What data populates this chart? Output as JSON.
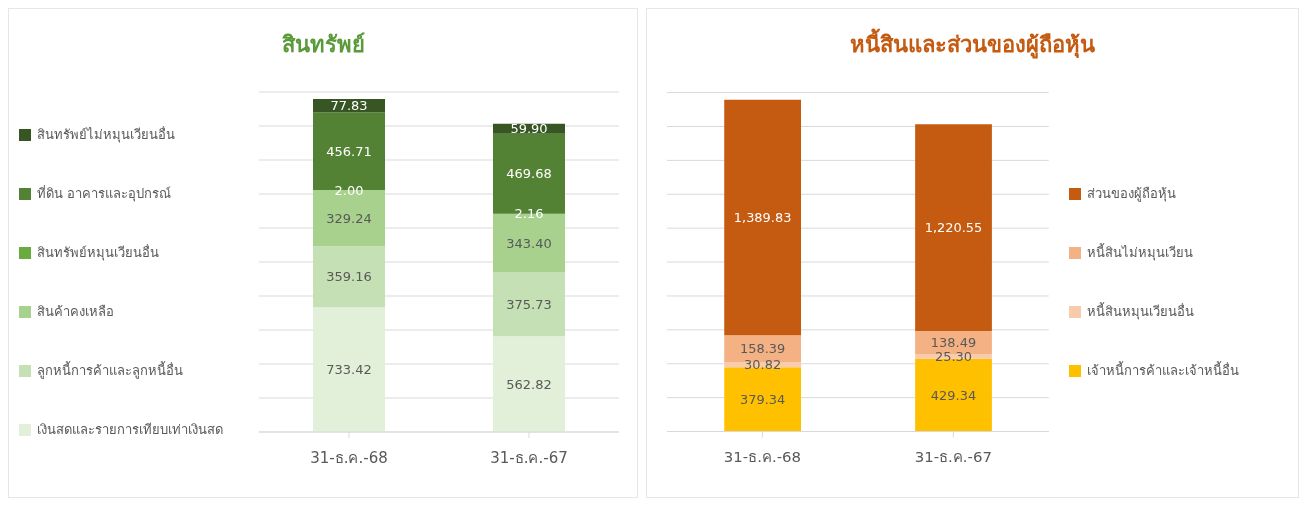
{
  "chart_data": [
    {
      "type": "bar",
      "title": "สินทรัพย์",
      "categories": [
        "31-ธ.ค.-68",
        "31-ธ.ค.-67"
      ],
      "stacked": true,
      "grid": "y",
      "legend": "left",
      "tick_labels": "x",
      "ylim": [
        0,
        2000
      ],
      "yticks": [
        {
          "value": 0,
          "label": null
        },
        {
          "value": 200,
          "label": null
        },
        {
          "value": 400,
          "label": null
        },
        {
          "value": 600,
          "label": null
        },
        {
          "value": 800,
          "label": null
        },
        {
          "value": 1000,
          "label": null
        },
        {
          "value": 1200,
          "label": null
        },
        {
          "value": 1400,
          "label": null
        },
        {
          "value": 1600,
          "label": null
        },
        {
          "value": 1800,
          "label": null
        },
        {
          "value": 2000,
          "label": null
        }
      ],
      "series": [
        {
          "name": "เงินสดและรายการเทียบเท่าเงินสด",
          "color": "#e2efd9",
          "values": [
            733.42,
            562.82
          ],
          "value_labels": [
            "733.42",
            "562.82"
          ]
        },
        {
          "name": "ลูกหนี้การค้าและลูกหนี้อื่น",
          "color": "#c5e0b4",
          "values": [
            359.16,
            375.73
          ],
          "value_labels": [
            "359.16",
            "375.73"
          ]
        },
        {
          "name": "สินค้าคงเหลือ",
          "color": "#a9d18e",
          "values": [
            329.24,
            343.4
          ],
          "value_labels": [
            "329.24",
            "343.40"
          ]
        },
        {
          "name": "สินทรัพย์หมุนเวียนอื่น",
          "color": "#6aab3e",
          "values": [
            2.0,
            2.16
          ],
          "value_labels": [
            "2.00",
            "2.16"
          ]
        },
        {
          "name": "ที่ดิน อาคารและอุปกรณ์",
          "color": "#548235",
          "values": [
            456.71,
            469.68
          ],
          "value_labels": [
            "456.71",
            "469.68"
          ]
        },
        {
          "name": "สินทรัพย์ไม่หมุนเวียนอื่น",
          "color": "#375623",
          "values": [
            77.83,
            59.9
          ],
          "value_labels": [
            "77.83",
            "59.90"
          ]
        }
      ]
    },
    {
      "type": "bar",
      "title": "หนี้สินและส่วนของผู้ถือหุ้น",
      "categories": [
        "31-ธ.ค.-68",
        "31-ธ.ค.-67"
      ],
      "stacked": true,
      "grid": "y",
      "legend": "right",
      "tick_labels": "x",
      "ylim": [
        0,
        2000
      ],
      "yticks": [
        {
          "value": 0,
          "label": null
        },
        {
          "value": 200,
          "label": null
        },
        {
          "value": 400,
          "label": null
        },
        {
          "value": 600,
          "label": null
        },
        {
          "value": 800,
          "label": null
        },
        {
          "value": 1000,
          "label": null
        },
        {
          "value": 1200,
          "label": null
        },
        {
          "value": 1400,
          "label": null
        },
        {
          "value": 1600,
          "label": null
        },
        {
          "value": 1800,
          "label": null
        },
        {
          "value": 2000,
          "label": null
        }
      ],
      "series": [
        {
          "name": "เจ้าหนี้การค้าและเจ้าหนี้อื่น",
          "color": "#ffc000",
          "values": [
            379.34,
            429.34
          ],
          "value_labels": [
            "379.34",
            "429.34"
          ]
        },
        {
          "name": "หนี้สินหมุนเวียนอื่น",
          "color": "#f8cbad",
          "values": [
            30.82,
            25.3
          ],
          "value_labels": [
            "30.82",
            "25.30"
          ]
        },
        {
          "name": "หนี้สินไม่หมุนเวียน",
          "color": "#f4b183",
          "values": [
            158.39,
            138.49
          ],
          "value_labels": [
            "158.39",
            "138.49"
          ]
        },
        {
          "name": "ส่วนของผู้ถือหุ้น",
          "color": "#c55a11",
          "values": [
            1389.83,
            1220.55
          ],
          "value_labels": [
            "1,389.83",
            "1,220.55"
          ]
        }
      ]
    }
  ]
}
